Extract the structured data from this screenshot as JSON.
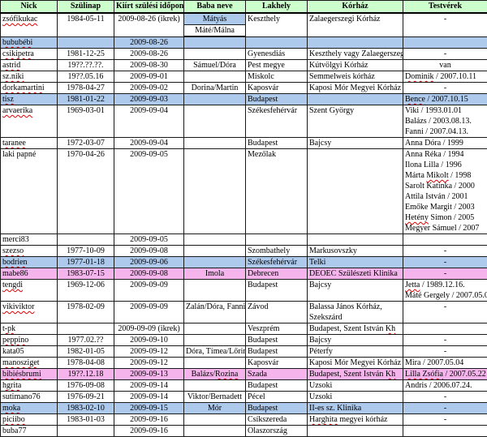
{
  "table": {
    "columns": [
      {
        "label": "Nick"
      },
      {
        "label": "Szülinap"
      },
      {
        "label": "Kiírt szülési időpont"
      },
      {
        "label": "Baba neve"
      },
      {
        "label": "Lakhely"
      },
      {
        "label": "Kórház"
      },
      {
        "label": "Testvérek"
      }
    ],
    "colors": {
      "header_bg": "#ccffcc",
      "highlight_blue": "#adc9ec",
      "highlight_pink": "#f5b5ec",
      "spellcheck_red": "#e00000",
      "border": "#1a1a1a"
    },
    "rows": [
      {
        "cells": {
          "nick": {
            "text": "zsófikukac",
            "wavy": true
          },
          "szulinap": "1984-05-11",
          "kiirt": "2009-08-26 (ikrek)",
          "baba": {
            "stack": [
              {
                "text": "Mátyás",
                "bg": "blue"
              },
              {
                "text": "Máté/Málna"
              }
            ]
          },
          "lakhely": "Keszthely",
          "korhaz": "Zalaegerszegi Kórház",
          "testverek": "-"
        }
      },
      {
        "bg": "blue",
        "cells": {
          "nick": {
            "text": "bububébi",
            "wavy": true
          },
          "kiirt": "2009-08-26"
        }
      },
      {
        "cells": {
          "nick": {
            "text": "csikipetra",
            "wavy": true
          },
          "szulinap": "1981-12-25",
          "kiirt": "2009-08-26",
          "lakhely": "Gyenesdiás",
          "korhaz": "Keszthely vagy Zalaegerszeg",
          "testverek": "-"
        }
      },
      {
        "cells": {
          "nick": {
            "text": "astrid",
            "wavy": true
          },
          "szulinap": "19??.??.??.",
          "kiirt": "2009-08-30",
          "baba": "Sámuel/Dóra",
          "lakhely": "Pest megye",
          "korhaz": "Kútvölgyi Kórház",
          "testverek": "van"
        }
      },
      {
        "cells": {
          "nick": {
            "text": "sz.niki",
            "wavy": true
          },
          "szulinap": "19??.05.16",
          "kiirt": "2009-09-01",
          "lakhely": "Miskolc",
          "korhaz": "Semmelweis kórház",
          "testverek": {
            "text": "Dominik / 2007.10.11",
            "wavy_words": [
              "Dominik"
            ]
          }
        }
      },
      {
        "cells": {
          "nick": {
            "text": "dorkamartini",
            "wavy": true
          },
          "szulinap": "1978-04-27",
          "kiirt": "2009-09-02",
          "baba": "Dorina/Martin",
          "lakhely": "Kaposvár",
          "korhaz": "Kaposi Mór Megyei Kórház",
          "testverek": "-"
        }
      },
      {
        "bg": "blue",
        "cells": {
          "nick": {
            "text": "tisz",
            "wavy": true
          },
          "szulinap": "1981-01-22",
          "kiirt": "2009-09-03",
          "lakhely": "Budapest",
          "testverek": {
            "text": "Bence / 2007.10.15",
            "wavy_words": [
              "Bence"
            ]
          }
        }
      },
      {
        "cells": {
          "nick": {
            "text": "arvaerika",
            "wavy": true
          },
          "szulinap": "1969-03-01",
          "kiirt": "2009-09-04",
          "lakhely": "Székesfehérvár",
          "korhaz": "Szent György",
          "testverek": {
            "lines": [
              "Viki / 1993.01.01",
              "Balázs / 2003.08.13.",
              "Fanni / 2007.04.13."
            ]
          }
        }
      },
      {
        "cells": {
          "nick": {
            "text": "taranee",
            "wavy": true
          },
          "szulinap": "1972-03-07",
          "kiirt": "2009-09-04",
          "lakhely": "Budapest",
          "korhaz": "Bajcsy",
          "testverek": "Anna Dóra / 1999"
        }
      },
      {
        "cells": {
          "nick": {
            "text": "laki papné"
          },
          "szulinap": "1970-04-26",
          "kiirt": "2009-09-05",
          "lakhely": "Mezőlak",
          "testverek": {
            "lines": [
              "Anna Réka / 1994",
              "Ilona Lilla / 1996",
              {
                "text": "Márta Mikolt / 1998",
                "wavy_words": [
                  "Mikolt"
                ]
              },
              "Sarolt Katinka / 2000",
              "Attila István / 2001",
              "Emőke Margit / 2003",
              {
                "text": "Hetény Simon / 2005",
                "wavy_words": [
                  "Hetény"
                ]
              },
              "Megyer Sámuel / 2007"
            ]
          }
        }
      },
      {
        "cells": {
          "nick": {
            "text": "merci83"
          },
          "kiirt": "2009-09-05"
        }
      },
      {
        "cells": {
          "nick": {
            "text": "szezso",
            "wavy": true
          },
          "szulinap": "1977-10-09",
          "kiirt": "2009-09-08",
          "lakhely": "Szombathely",
          "korhaz": "Markusovszky",
          "testverek": "-"
        }
      },
      {
        "bg": "blue",
        "cells": {
          "nick": {
            "text": "bodrien",
            "wavy": true
          },
          "szulinap": "1977-01-18",
          "kiirt": "2009-09-06",
          "lakhely": "Székesfehérvár",
          "korhaz": "Telki",
          "testverek": "-"
        }
      },
      {
        "bg": "pink",
        "cells": {
          "nick": {
            "text": "mabe86"
          },
          "szulinap": "1983-07-15",
          "kiirt": "2009-09-08",
          "baba": "Imola",
          "lakhely": "Debrecen",
          "korhaz": "DEOEC Szülészeti Klinika",
          "testverek": "-"
        }
      },
      {
        "cells": {
          "nick": {
            "text": "tengdi",
            "wavy": true
          },
          "szulinap": "1969-12-06",
          "kiirt": "2009-09-09",
          "lakhely": "Budapest",
          "korhaz": "Bajcsy",
          "testverek": {
            "lines": [
              {
                "text": "Jetta / 1989.12.16.",
                "wavy_words": [
                  "Jetta"
                ]
              },
              "Máté Gergely / 2007.05.04"
            ]
          }
        }
      },
      {
        "cells": {
          "nick": {
            "text": "vikiviktor",
            "wavy": true
          },
          "szulinap": "1978-02-09",
          "kiirt": "2009-09-09",
          "baba": "Zalán/Dóra, Fanni",
          "lakhely": "Závod",
          "korhaz": {
            "lines": [
              "Balassa János Kórház,",
              "Szekszárd"
            ]
          },
          "testverek": "-"
        }
      },
      {
        "cells": {
          "nick": {
            "text": "t-pk",
            "wavy": true
          },
          "kiirt": "2009-09-09 (ikrek)",
          "lakhely": "Veszprém",
          "korhaz": {
            "text": "Budapest, Szent István Kh",
            "wavy_words": [
              "Kh"
            ]
          }
        }
      },
      {
        "cells": {
          "nick": {
            "text": "peppino",
            "wavy": true
          },
          "szulinap": "1977.02.??",
          "kiirt": "2009-09-10",
          "lakhely": "Budapest",
          "korhaz": "Bajcsy",
          "testverek": "-"
        }
      },
      {
        "cells": {
          "nick": {
            "text": "kata05"
          },
          "szulinap": "1982-01-05",
          "kiirt": "2009-09-12",
          "baba": "Dóra, Tímea/Lőrinc",
          "lakhely": "Budapest",
          "korhaz": "Péterfy",
          "testverek": "-"
        }
      },
      {
        "cells": {
          "nick": {
            "text": "manosziget",
            "wavy": true
          },
          "szulinap": "1978-04-08",
          "kiirt": "2009-09-12",
          "lakhely": "Kaposvár",
          "korhaz": "Kaposi Mór Megyei Kórház",
          "testverek": "Mira / 2007.05.04"
        }
      },
      {
        "bg": "pink",
        "cells": {
          "nick": {
            "text": "bibiésbrumi",
            "wavy": true
          },
          "szulinap": "19??.12.18",
          "kiirt": "2009-09-13",
          "baba": {
            "text": "Balázs/Rozina",
            "wavy_words": [
              "Rozina"
            ]
          },
          "lakhely": "Szada",
          "korhaz": {
            "text": "Budapest, Szent István Kh",
            "wavy_words": [
              "Kh"
            ]
          },
          "testverek": {
            "text": "Lilla Zsófia / 2007.05.22",
            "wavy_words": [
              "Lilla Zsófia"
            ]
          }
        }
      },
      {
        "cells": {
          "nick": {
            "text": "hgrita",
            "wavy": true
          },
          "szulinap": "1976-09-08",
          "kiirt": "2009-09-14",
          "lakhely": "Budapest",
          "korhaz": "Uzsoki",
          "testverek": "Andris / 2006.07.24."
        }
      },
      {
        "cells": {
          "nick": {
            "text": "sutimano76"
          },
          "szulinap": "1976-09-21",
          "kiirt": "2009-09-14",
          "baba": "Viktor/Bernadett",
          "lakhely": "Pécel",
          "korhaz": "Uzsoki",
          "testverek": "-"
        }
      },
      {
        "bg": "blue",
        "cells": {
          "nick": {
            "text": "moka",
            "wavy": true
          },
          "szulinap": "1983-02-10",
          "kiirt": "2009-09-15",
          "baba": "Mór",
          "lakhely": "Budapest",
          "korhaz": "II-es sz. Klinika",
          "testverek": "-"
        }
      },
      {
        "cells": {
          "nick": {
            "text": "piciibo",
            "wavy": true
          },
          "szulinap": "1983-01-03",
          "kiirt": "2009-09-16",
          "lakhely": "Csíkszereda",
          "korhaz": {
            "text": "Harghita megyei kórház",
            "wavy_words": [
              "Harghita"
            ]
          },
          "testverek": "-"
        }
      },
      {
        "cells": {
          "nick": {
            "text": "buba77"
          },
          "kiirt": "2009-09-16",
          "lakhely": "Olaszország"
        }
      }
    ]
  }
}
